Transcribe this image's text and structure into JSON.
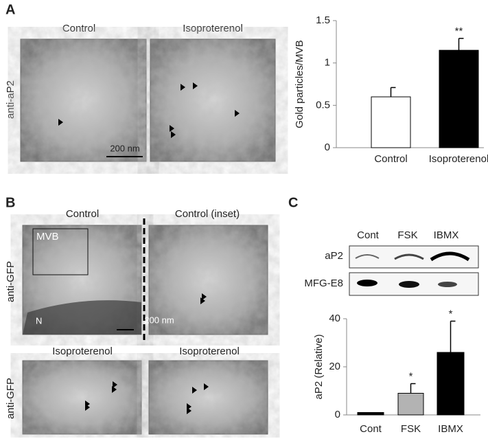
{
  "panels": {
    "a": {
      "letter": "A",
      "images": [
        "Control",
        "Isoproterenol"
      ],
      "antibody": "anti-aP2",
      "scale": "200 nm"
    },
    "b": {
      "letter": "B",
      "top_images": [
        "Control",
        "Control (inset)"
      ],
      "bottom_images": [
        "Isoproterenol",
        "Isoproterenol"
      ],
      "antibody_top": "anti-GFP",
      "antibody_bottom": "anti-GFP",
      "box_label": "MVB",
      "nucleus": "N",
      "scale": "200 nm"
    },
    "c": {
      "letter": "C",
      "lanes": [
        "Cont",
        "FSK",
        "IBMX"
      ],
      "blots": [
        "aP2",
        "MFG-E8"
      ]
    }
  },
  "chart_data": [
    {
      "type": "bar",
      "y_label": "Gold particles/MVB",
      "categories": [
        "Control",
        "Isoproterenol"
      ],
      "values": [
        0.6,
        1.15
      ],
      "errors": [
        0.11,
        0.14
      ],
      "colors": [
        "#ffffff",
        "#000000"
      ],
      "annotations": [
        null,
        "**"
      ],
      "ylim": [
        0,
        1.5
      ],
      "yticks": [
        0,
        0.5,
        1,
        1.5
      ]
    },
    {
      "type": "bar",
      "y_label": "aP2 (Relative)",
      "categories": [
        "Cont",
        "FSK",
        "IBMX"
      ],
      "values": [
        1,
        9,
        26
      ],
      "errors": [
        null,
        4,
        13
      ],
      "colors": [
        "#000000",
        "#b3b3b3",
        "#000000"
      ],
      "annotations": [
        null,
        "*",
        "*"
      ],
      "ylim": [
        0,
        40
      ],
      "yticks": [
        0,
        20,
        40
      ]
    }
  ]
}
